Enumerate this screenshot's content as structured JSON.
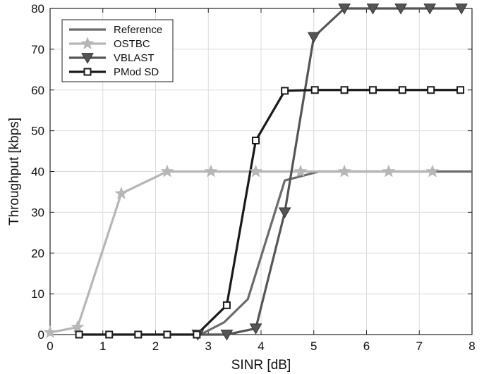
{
  "chart_data": {
    "type": "line",
    "title": "",
    "xlabel": "SINR [dB]",
    "ylabel": "Throughput [kbps]",
    "xlim": [
      0,
      8
    ],
    "ylim": [
      0,
      80
    ],
    "xticks": [
      0,
      1,
      2,
      3,
      4,
      5,
      6,
      7,
      8
    ],
    "yticks": [
      0,
      10,
      20,
      30,
      40,
      50,
      60,
      70,
      80
    ],
    "grid": true,
    "legend_position": "top-left",
    "series": [
      {
        "name": "Reference",
        "color": "#6b6b6b",
        "marker": "none",
        "points": [
          [
            2.85,
            0
          ],
          [
            3.3,
            3
          ],
          [
            3.75,
            8.7
          ],
          [
            4.45,
            37.8
          ],
          [
            5.1,
            40
          ],
          [
            8,
            40
          ]
        ]
      },
      {
        "name": "OSTBC",
        "color": "#b6b6b6",
        "marker": "star",
        "points": [
          [
            0,
            0.5
          ],
          [
            0.52,
            1.8
          ],
          [
            1.35,
            34.6
          ],
          [
            2.22,
            40
          ],
          [
            3.05,
            40
          ],
          [
            3.9,
            40
          ],
          [
            4.75,
            40
          ],
          [
            5.58,
            40
          ],
          [
            6.42,
            40
          ],
          [
            7.25,
            40
          ]
        ]
      },
      {
        "name": "VBLAST",
        "color": "#555555",
        "marker": "triangle-down",
        "points": [
          [
            2.8,
            0
          ],
          [
            3.35,
            0
          ],
          [
            3.9,
            1.5
          ],
          [
            4.45,
            30
          ],
          [
            5.0,
            73
          ],
          [
            5.58,
            80
          ],
          [
            6.12,
            80
          ],
          [
            6.65,
            80
          ],
          [
            7.2,
            80
          ],
          [
            7.8,
            80
          ]
        ]
      },
      {
        "name": "PMod SD",
        "color": "#1a1a1a",
        "marker": "square",
        "points": [
          [
            0.55,
            0
          ],
          [
            1.12,
            0
          ],
          [
            1.67,
            0
          ],
          [
            2.22,
            0
          ],
          [
            2.78,
            0
          ],
          [
            3.35,
            7.2
          ],
          [
            3.9,
            47.6
          ],
          [
            4.45,
            59.8
          ],
          [
            5.02,
            60
          ],
          [
            5.58,
            60
          ],
          [
            6.12,
            60
          ],
          [
            6.68,
            60
          ],
          [
            7.22,
            60
          ],
          [
            7.78,
            60
          ]
        ]
      }
    ]
  }
}
